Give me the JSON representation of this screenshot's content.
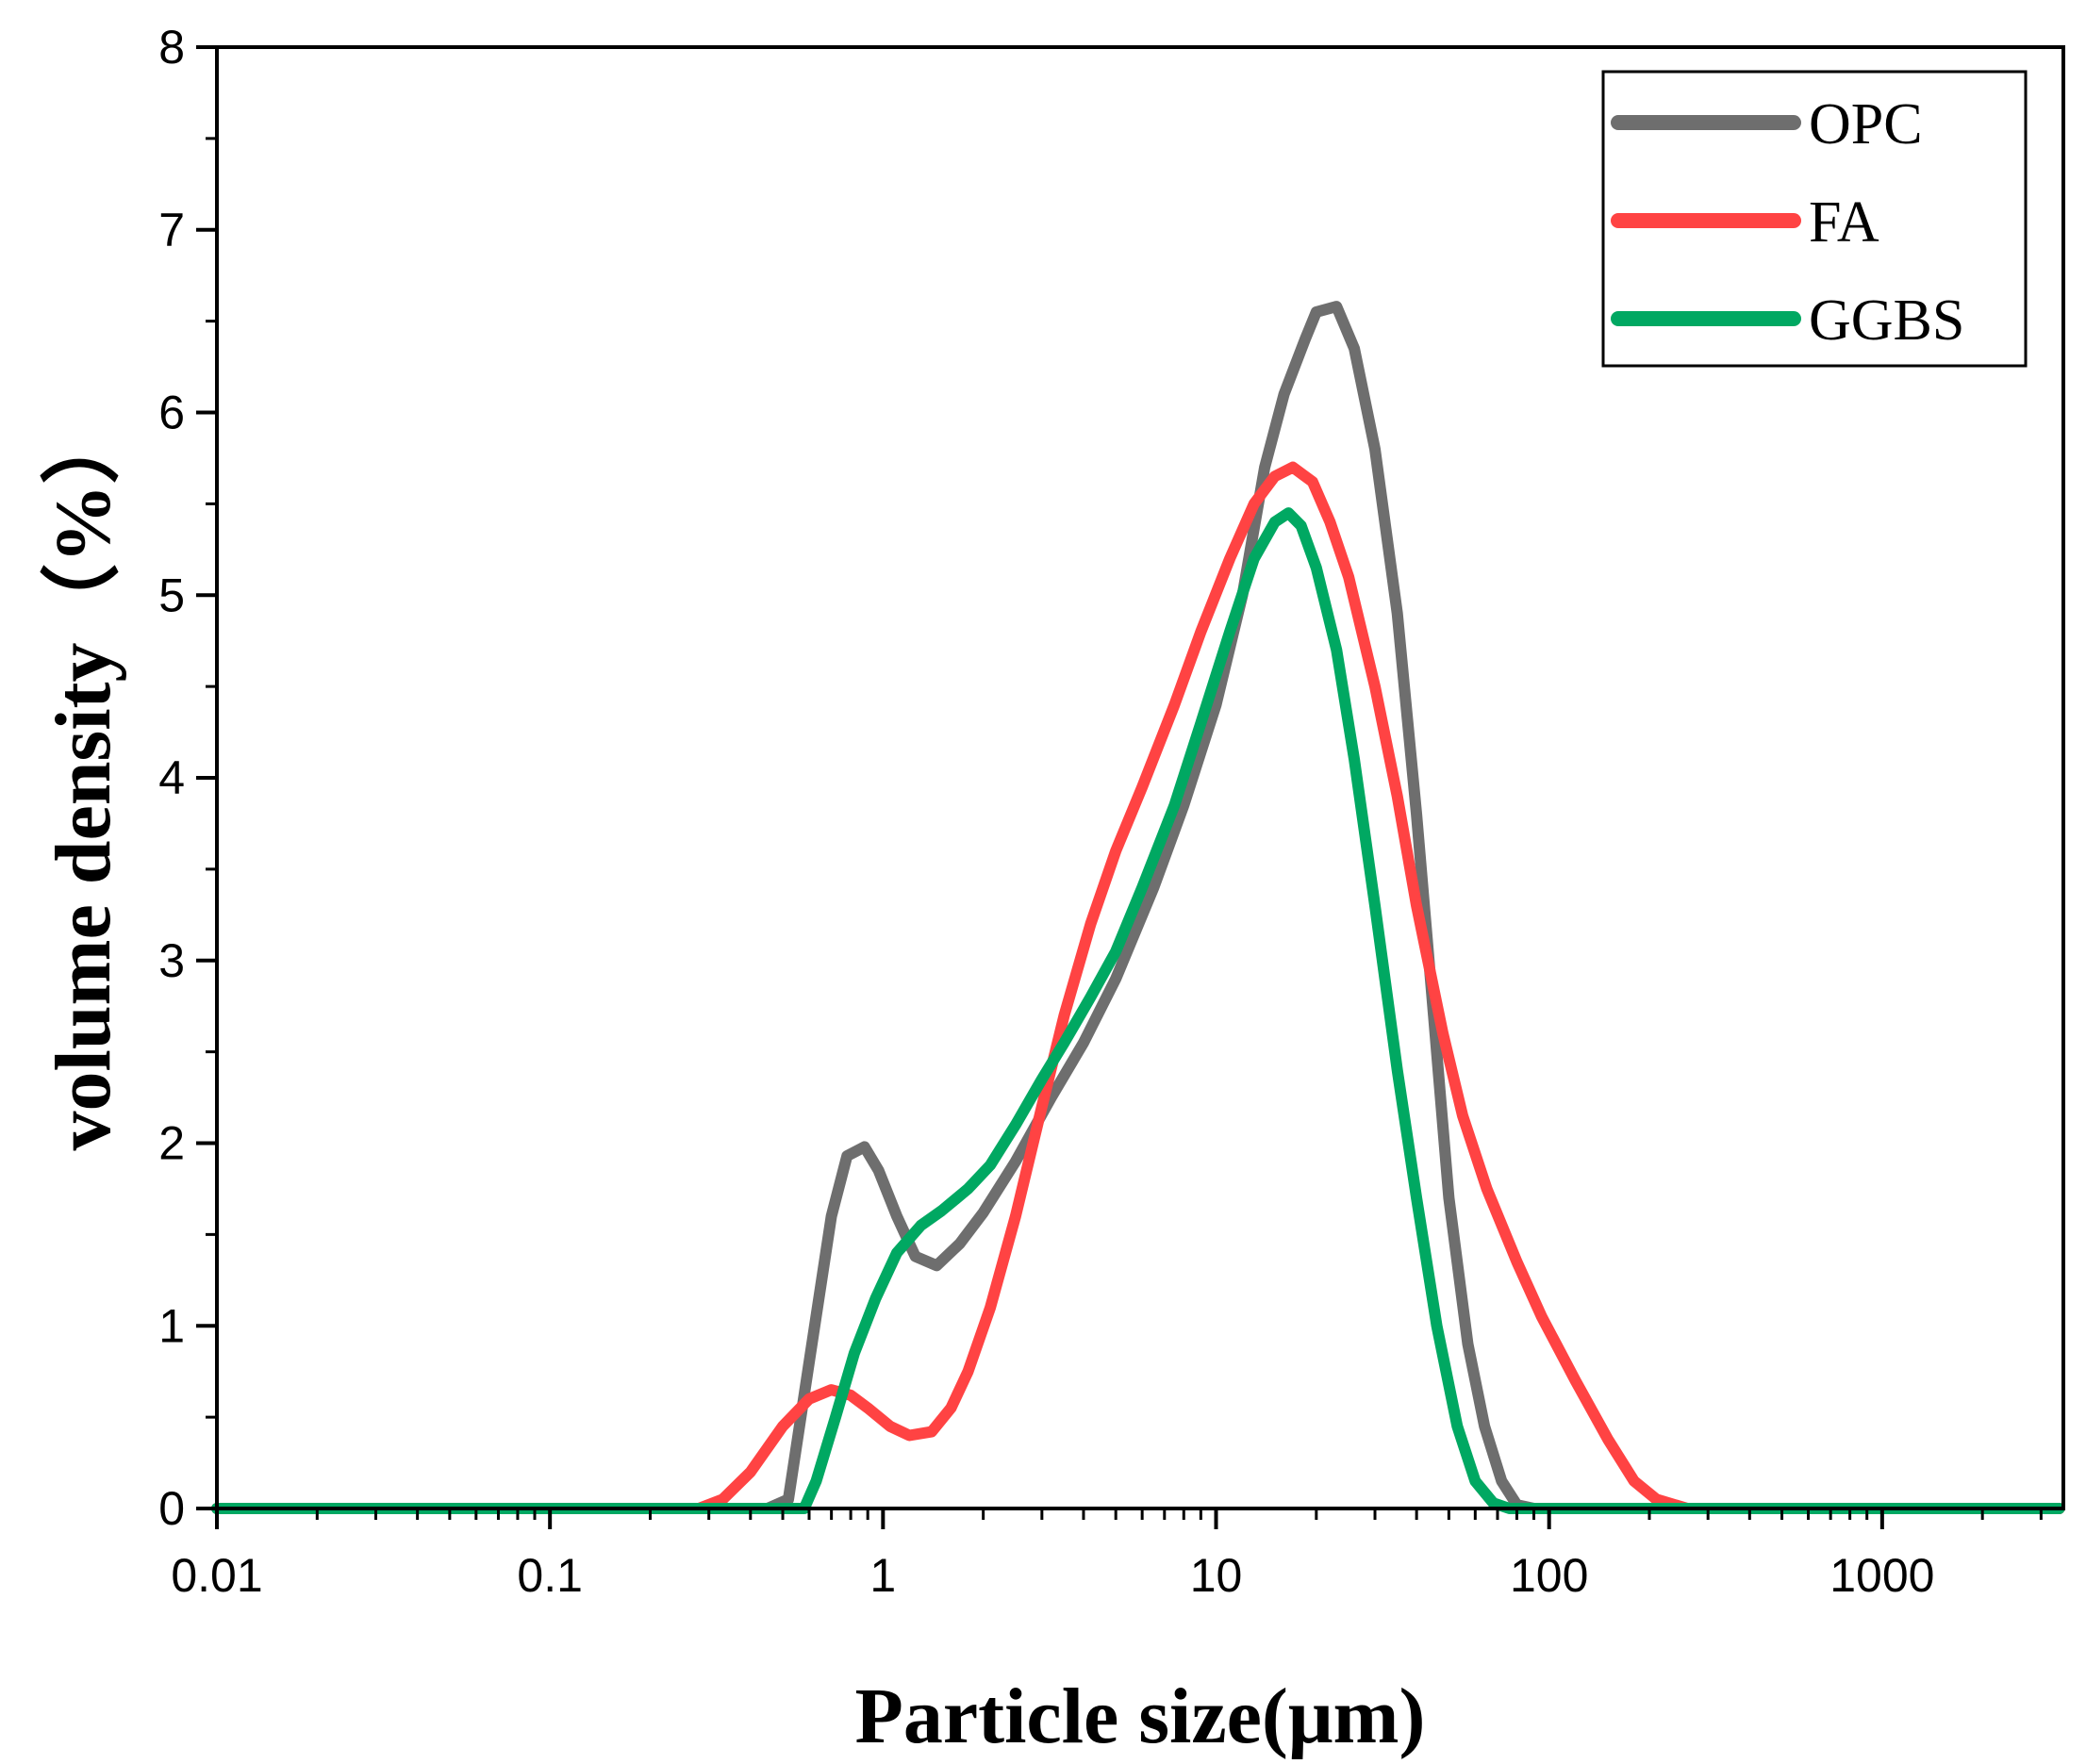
{
  "chart_data": {
    "type": "line",
    "title": "",
    "xlabel": "Particle size(μm)",
    "ylabel": "volume density（%）",
    "xscale": "log",
    "xlim": [
      0.01,
      3500
    ],
    "ylim": [
      0,
      8
    ],
    "x_ticks": [
      0.01,
      0.1,
      1,
      10,
      100,
      1000
    ],
    "x_tick_labels": [
      "0.01",
      "0.1",
      "1",
      "10",
      "100",
      "1000"
    ],
    "y_ticks": [
      0,
      1,
      2,
      3,
      4,
      5,
      6,
      7,
      8
    ],
    "y_tick_labels": [
      "0",
      "1",
      "2",
      "3",
      "4",
      "5",
      "6",
      "7",
      "8"
    ],
    "grid": false,
    "legend_position": "top-right",
    "series": [
      {
        "name": "OPC",
        "color": "#6e6e6e",
        "points": [
          [
            0.01,
            0
          ],
          [
            0.45,
            0
          ],
          [
            0.52,
            0.05
          ],
          [
            0.6,
            0.8
          ],
          [
            0.7,
            1.6
          ],
          [
            0.78,
            1.93
          ],
          [
            0.88,
            1.98
          ],
          [
            0.97,
            1.85
          ],
          [
            1.1,
            1.6
          ],
          [
            1.25,
            1.38
          ],
          [
            1.45,
            1.33
          ],
          [
            1.7,
            1.45
          ],
          [
            2.0,
            1.62
          ],
          [
            2.5,
            1.9
          ],
          [
            3.2,
            2.25
          ],
          [
            4.0,
            2.55
          ],
          [
            5.0,
            2.9
          ],
          [
            6.5,
            3.4
          ],
          [
            8.0,
            3.85
          ],
          [
            10.0,
            4.4
          ],
          [
            12.0,
            5.0
          ],
          [
            14.0,
            5.7
          ],
          [
            16.0,
            6.1
          ],
          [
            18.5,
            6.4
          ],
          [
            20.0,
            6.55
          ],
          [
            23.0,
            6.58
          ],
          [
            26.0,
            6.35
          ],
          [
            30.0,
            5.8
          ],
          [
            35.0,
            4.9
          ],
          [
            40.0,
            3.8
          ],
          [
            45.0,
            2.7
          ],
          [
            50.0,
            1.7
          ],
          [
            57.0,
            0.9
          ],
          [
            64.0,
            0.45
          ],
          [
            72.0,
            0.15
          ],
          [
            80.0,
            0.02
          ],
          [
            90.0,
            0
          ],
          [
            3400,
            0
          ]
        ]
      },
      {
        "name": "FA",
        "color": "#ff4343",
        "points": [
          [
            0.01,
            0
          ],
          [
            0.28,
            0
          ],
          [
            0.33,
            0.05
          ],
          [
            0.4,
            0.2
          ],
          [
            0.5,
            0.45
          ],
          [
            0.6,
            0.6
          ],
          [
            0.7,
            0.65
          ],
          [
            0.8,
            0.62
          ],
          [
            0.9,
            0.55
          ],
          [
            1.05,
            0.45
          ],
          [
            1.2,
            0.4
          ],
          [
            1.4,
            0.42
          ],
          [
            1.6,
            0.55
          ],
          [
            1.8,
            0.75
          ],
          [
            2.1,
            1.1
          ],
          [
            2.5,
            1.6
          ],
          [
            3.0,
            2.2
          ],
          [
            3.5,
            2.7
          ],
          [
            4.2,
            3.2
          ],
          [
            5.0,
            3.6
          ],
          [
            6.0,
            3.95
          ],
          [
            7.5,
            4.4
          ],
          [
            9.0,
            4.8
          ],
          [
            11.0,
            5.2
          ],
          [
            13.0,
            5.5
          ],
          [
            15.0,
            5.65
          ],
          [
            17.0,
            5.7
          ],
          [
            19.5,
            5.62
          ],
          [
            22.0,
            5.4
          ],
          [
            25.0,
            5.1
          ],
          [
            30.0,
            4.5
          ],
          [
            35.0,
            3.9
          ],
          [
            40.0,
            3.3
          ],
          [
            48.0,
            2.6
          ],
          [
            55.0,
            2.15
          ],
          [
            65.0,
            1.75
          ],
          [
            80.0,
            1.35
          ],
          [
            95.0,
            1.05
          ],
          [
            120.0,
            0.7
          ],
          [
            150.0,
            0.38
          ],
          [
            180.0,
            0.15
          ],
          [
            210.0,
            0.05
          ],
          [
            260.0,
            0
          ],
          [
            3400,
            0
          ]
        ]
      },
      {
        "name": "GGBS",
        "color": "#00a862",
        "points": [
          [
            0.01,
            0
          ],
          [
            0.58,
            0
          ],
          [
            0.63,
            0.15
          ],
          [
            0.72,
            0.5
          ],
          [
            0.82,
            0.85
          ],
          [
            0.95,
            1.15
          ],
          [
            1.1,
            1.4
          ],
          [
            1.3,
            1.55
          ],
          [
            1.5,
            1.63
          ],
          [
            1.8,
            1.75
          ],
          [
            2.1,
            1.88
          ],
          [
            2.5,
            2.1
          ],
          [
            3.0,
            2.35
          ],
          [
            3.5,
            2.55
          ],
          [
            4.2,
            2.8
          ],
          [
            5.0,
            3.05
          ],
          [
            6.0,
            3.4
          ],
          [
            7.5,
            3.85
          ],
          [
            9.0,
            4.3
          ],
          [
            11.0,
            4.8
          ],
          [
            13.0,
            5.2
          ],
          [
            15.0,
            5.4
          ],
          [
            16.5,
            5.45
          ],
          [
            18.0,
            5.38
          ],
          [
            20.0,
            5.15
          ],
          [
            23.0,
            4.7
          ],
          [
            26.0,
            4.1
          ],
          [
            30.0,
            3.3
          ],
          [
            35.0,
            2.4
          ],
          [
            40.0,
            1.7
          ],
          [
            46.0,
            1.0
          ],
          [
            53.0,
            0.45
          ],
          [
            60.0,
            0.15
          ],
          [
            68.0,
            0.03
          ],
          [
            76.0,
            0
          ],
          [
            3400,
            0
          ]
        ]
      }
    ]
  }
}
